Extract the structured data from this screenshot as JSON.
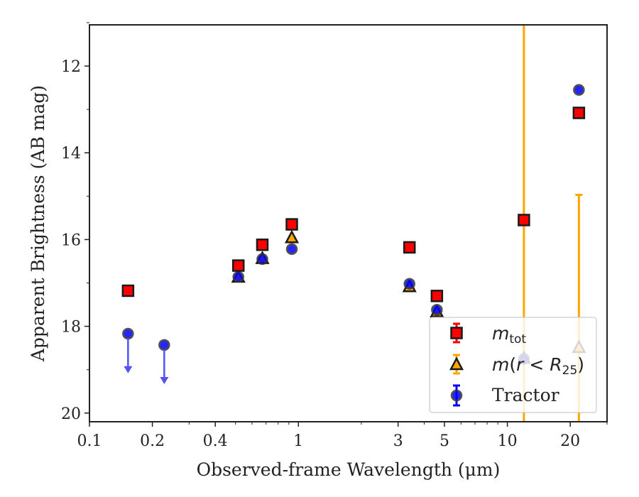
{
  "chart_data": {
    "type": "scatter",
    "title": "",
    "xlabel": "Observed-frame Wavelength (μm)",
    "ylabel": "Apparent Brightness (AB mag)",
    "xscale": "log",
    "xlim": [
      0.1,
      30
    ],
    "ylim": [
      20.2,
      11.05
    ],
    "y_inverted": true,
    "xticks": [
      {
        "value": 0.1,
        "label": "0.1"
      },
      {
        "value": 0.2,
        "label": "0.2"
      },
      {
        "value": 0.4,
        "label": "0.4"
      },
      {
        "value": 1,
        "label": "1"
      },
      {
        "value": 3,
        "label": "3"
      },
      {
        "value": 5,
        "label": "5"
      },
      {
        "value": 10,
        "label": "10"
      },
      {
        "value": 20,
        "label": "20"
      }
    ],
    "yticks": [
      {
        "value": 12,
        "label": "12"
      },
      {
        "value": 14,
        "label": "14"
      },
      {
        "value": 16,
        "label": "16"
      },
      {
        "value": 18,
        "label": "18"
      },
      {
        "value": 20,
        "label": "20"
      }
    ],
    "legend_position": "bottom-right",
    "series": [
      {
        "name": "m_tot",
        "legend_label": {
          "italic": "m",
          "sub": "tot"
        },
        "marker": "square",
        "color": "#ff0000",
        "edge_color": "#1a1a1a",
        "errorbar_color": "#ff0000",
        "points": [
          {
            "x": 0.153,
            "y": 17.18
          },
          {
            "x": 0.516,
            "y": 16.6
          },
          {
            "x": 0.672,
            "y": 16.12
          },
          {
            "x": 0.93,
            "y": 15.65
          },
          {
            "x": 3.4,
            "y": 16.18
          },
          {
            "x": 4.6,
            "y": 17.3
          },
          {
            "x": 12.0,
            "y": 15.55
          },
          {
            "x": 22.0,
            "y": 13.08
          }
        ]
      },
      {
        "name": "m(r<R_25)",
        "legend_label": {
          "italic": "m",
          "open": "(",
          "italic2": "r",
          "op": " < ",
          "italic3": "R",
          "sub": "25",
          "close": ")"
        },
        "marker": "triangle",
        "color": "#ffa500",
        "edge_color": "#1a1a1a",
        "errorbar_color": "#ffa500",
        "points": [
          {
            "x": 0.516,
            "y": 16.88
          },
          {
            "x": 0.672,
            "y": 16.45
          },
          {
            "x": 0.93,
            "y": 15.97
          },
          {
            "x": 3.4,
            "y": 17.1
          },
          {
            "x": 4.6,
            "y": 17.68
          },
          {
            "x": 12.0,
            "y": 18.75,
            "error_band": [
              11.05,
              20.2
            ]
          },
          {
            "x": 22.0,
            "y": 18.5,
            "error_band": [
              14.97,
              20.2
            ]
          }
        ]
      },
      {
        "name": "Tractor",
        "legend_label": {
          "text": "Tractor"
        },
        "marker": "circle",
        "color": "#0000ff",
        "edge_color": "#1a1a1a",
        "errorbar_color": "#0000ff",
        "points": [
          {
            "x": 0.153,
            "y": 18.17,
            "upper_limit": true,
            "arrow_to": 19.05
          },
          {
            "x": 0.228,
            "y": 18.43,
            "upper_limit": true,
            "arrow_to": 19.3
          },
          {
            "x": 0.516,
            "y": 16.86
          },
          {
            "x": 0.672,
            "y": 16.45
          },
          {
            "x": 0.93,
            "y": 16.22
          },
          {
            "x": 3.4,
            "y": 17.02
          },
          {
            "x": 4.6,
            "y": 17.62
          },
          {
            "x": 12.0,
            "y": 18.75
          },
          {
            "x": 22.0,
            "y": 12.55
          }
        ]
      }
    ]
  }
}
